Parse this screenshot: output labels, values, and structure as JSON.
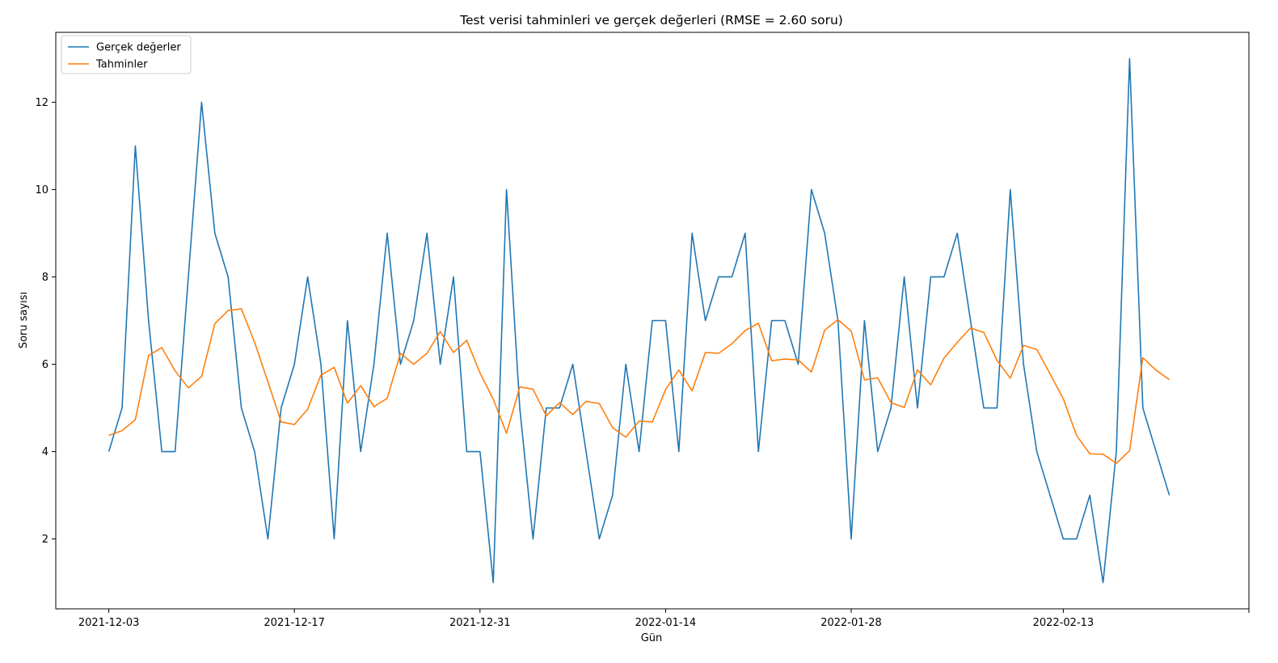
{
  "chart_data": {
    "type": "line",
    "title": "Test verisi tahminleri ve gerçek değerleri (RMSE = 2.60 soru)",
    "xlabel": "Gün",
    "ylabel": "Soru sayısı",
    "x_start": "2021-12-03",
    "x_end": "2022-02-22",
    "xlim": [
      "2021-11-29",
      "2022-02-27"
    ],
    "ylim": [
      0.4,
      13.6
    ],
    "x_ticks": [
      "2021-12-03",
      "2021-12-17",
      "2021-12-31",
      "2022-01-14",
      "2022-01-28",
      "2022-02-13",
      ""
    ],
    "y_ticks": [
      2,
      4,
      6,
      8,
      10,
      12
    ],
    "legend_position": "top-left",
    "grid": false,
    "series": [
      {
        "name": "Gerçek değerler",
        "color": "#1f77b4",
        "values": [
          4,
          5,
          11,
          7,
          4,
          4,
          8,
          12,
          9,
          8,
          5,
          4,
          2,
          5,
          6,
          8,
          6,
          2,
          7,
          4,
          6,
          9,
          6,
          7,
          9,
          6,
          8,
          4,
          4,
          1,
          10,
          5,
          2,
          5,
          5,
          6,
          4,
          2,
          3,
          6,
          4,
          7,
          7,
          4,
          9,
          7,
          8,
          8,
          9,
          4,
          7,
          7,
          6,
          10,
          9,
          7,
          2,
          7,
          4,
          5,
          8,
          5,
          8,
          8,
          9,
          7,
          5,
          5,
          10,
          6,
          4,
          3,
          2,
          2,
          3,
          1,
          4,
          13,
          5,
          4,
          3
        ]
      },
      {
        "name": "Tahminler",
        "color": "#ff7f0e",
        "values": [
          4.37,
          4.48,
          4.73,
          6.2,
          6.38,
          5.85,
          5.46,
          5.72,
          6.93,
          7.23,
          7.27,
          6.5,
          5.6,
          4.68,
          4.62,
          4.97,
          5.75,
          5.93,
          5.11,
          5.51,
          5.03,
          5.22,
          6.25,
          6.0,
          6.25,
          6.75,
          6.27,
          6.55,
          5.8,
          5.2,
          4.42,
          5.48,
          5.43,
          4.82,
          5.12,
          4.85,
          5.15,
          5.1,
          4.55,
          4.33,
          4.7,
          4.68,
          5.42,
          5.87,
          5.39,
          6.27,
          6.25,
          6.47,
          6.77,
          6.94,
          6.08,
          6.12,
          6.1,
          5.82,
          6.78,
          7.02,
          6.76,
          5.64,
          5.69,
          5.12,
          5.01,
          5.87,
          5.53,
          6.14,
          6.5,
          6.83,
          6.73,
          6.09,
          5.68,
          6.43,
          6.34,
          5.78,
          5.21,
          4.37,
          3.95,
          3.94,
          3.73,
          4.02,
          6.15,
          5.86,
          5.65
        ]
      }
    ]
  }
}
